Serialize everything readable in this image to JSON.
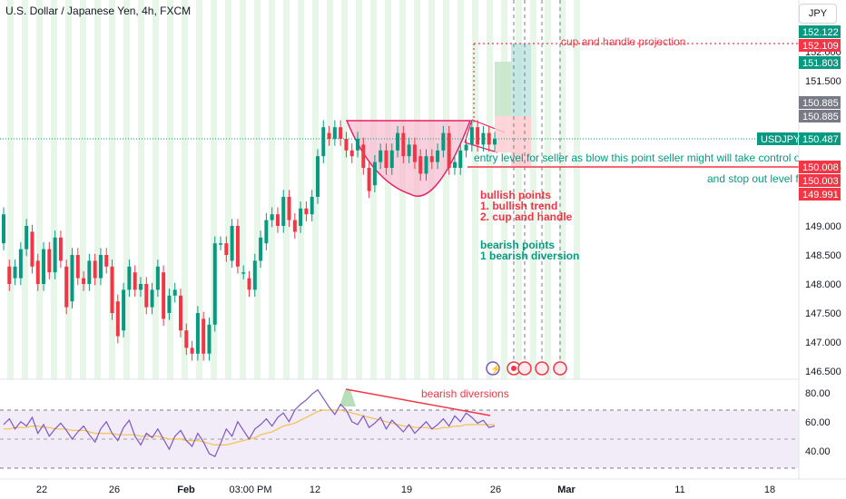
{
  "header": {
    "title": "U.S. Dollar / Japanese Yen, 4h, FXCM",
    "currency": "JPY"
  },
  "colors": {
    "up": "#089981",
    "down": "#f23645",
    "rsi_line": "#7e57c2",
    "rsi_ma": "#f2c14e",
    "band": "#ede7f6",
    "cup": "#f8bbd0",
    "session": "#e8f5e9"
  },
  "chart_data": [
    {
      "type": "candlestick",
      "symbol": "USDJPY",
      "yticks": [
        "152.000",
        "151.500",
        "150.000",
        "149.000",
        "148.500",
        "148.000",
        "147.500",
        "147.000",
        "146.500"
      ],
      "ylim": [
        146.4,
        152.4
      ],
      "xticks": [
        "22",
        "26",
        "Feb",
        "03:00 PM",
        "12",
        "19",
        "26",
        "Mar",
        "11",
        "18"
      ],
      "price_tags": [
        {
          "value": "152.122",
          "style": "teal"
        },
        {
          "value": "152.109",
          "style": "red"
        },
        {
          "value": "151.803",
          "style": "teal"
        },
        {
          "value": "150.885",
          "style": "gray"
        },
        {
          "value": "150.885",
          "style": "gray"
        },
        {
          "value": "150.487",
          "style": "teal",
          "symbol": "USDJPY"
        },
        {
          "value": "150.008",
          "style": "red"
        },
        {
          "value": "150.003",
          "style": "red"
        },
        {
          "value": "149.991",
          "style": "red"
        }
      ],
      "candles": [
        [
          148.7,
          149.2
        ],
        [
          148.3,
          148.0
        ],
        [
          148.1,
          148.3
        ],
        [
          148.1,
          148.6
        ],
        [
          148.6,
          149.0
        ],
        [
          148.9,
          148.3
        ],
        [
          148.4,
          148.0
        ],
        [
          148.0,
          148.6
        ],
        [
          148.6,
          148.2
        ],
        [
          148.2,
          148.8
        ],
        [
          148.8,
          148.4
        ],
        [
          148.3,
          147.6
        ],
        [
          147.7,
          148.5
        ],
        [
          148.5,
          148.1
        ],
        [
          148.1,
          148.0
        ],
        [
          148.0,
          148.4
        ],
        [
          148.4,
          148.1
        ],
        [
          148.1,
          148.5
        ],
        [
          148.5,
          148.3
        ],
        [
          148.3,
          147.5
        ],
        [
          147.7,
          147.1
        ],
        [
          147.2,
          147.9
        ],
        [
          147.9,
          148.3
        ],
        [
          148.2,
          147.9
        ],
        [
          147.9,
          148.0
        ],
        [
          148.0,
          147.6
        ],
        [
          147.6,
          147.9
        ],
        [
          147.9,
          148.3
        ],
        [
          148.2,
          147.4
        ],
        [
          147.5,
          147.8
        ],
        [
          147.8,
          147.9
        ],
        [
          147.8,
          147.2
        ],
        [
          147.2,
          146.9
        ],
        [
          146.9,
          146.8
        ],
        [
          146.8,
          147.5
        ],
        [
          147.4,
          146.8
        ],
        [
          146.8,
          147.3
        ],
        [
          147.3,
          148.7
        ],
        [
          148.7,
          148.7
        ],
        [
          148.7,
          148.5
        ],
        [
          148.4,
          149.0
        ],
        [
          149.0,
          148.3
        ],
        [
          148.2,
          148.2
        ],
        [
          148.1,
          147.9
        ],
        [
          147.9,
          148.4
        ],
        [
          148.4,
          148.8
        ],
        [
          148.7,
          149.1
        ],
        [
          149.1,
          149.2
        ],
        [
          149.2,
          149.0
        ],
        [
          149.0,
          149.5
        ],
        [
          149.5,
          149.1
        ],
        [
          149.1,
          148.9
        ],
        [
          149.0,
          149.3
        ],
        [
          149.3,
          149.2
        ],
        [
          149.2,
          149.5
        ],
        [
          149.5,
          150.2
        ],
        [
          150.2,
          150.7
        ],
        [
          150.6,
          150.5
        ],
        [
          150.5,
          150.7
        ],
        [
          150.7,
          150.5
        ],
        [
          150.5,
          150.3
        ],
        [
          150.3,
          150.2
        ],
        [
          150.3,
          150.5
        ],
        [
          150.4,
          150.0
        ],
        [
          150.0,
          149.6
        ],
        [
          149.7,
          150.1
        ],
        [
          150.1,
          150.3
        ],
        [
          150.3,
          150.0
        ],
        [
          150.0,
          150.3
        ],
        [
          150.3,
          150.6
        ],
        [
          150.6,
          150.2
        ],
        [
          150.2,
          150.4
        ],
        [
          150.4,
          150.1
        ],
        [
          150.2,
          149.9
        ],
        [
          149.9,
          150.2
        ],
        [
          150.2,
          150.1
        ],
        [
          150.1,
          150.3
        ],
        [
          150.3,
          150.6
        ],
        [
          150.6,
          150.0
        ],
        [
          150.0,
          150.1
        ],
        [
          150.0,
          150.3
        ],
        [
          150.3,
          150.4
        ],
        [
          150.4,
          150.7
        ],
        [
          150.7,
          150.4
        ],
        [
          150.4,
          150.6
        ],
        [
          150.6,
          150.4
        ],
        [
          150.4,
          150.5
        ]
      ],
      "annotations": {
        "projection": "cup and handle projection",
        "entry": "entry level for seller as blow this point seller might  will take control ove",
        "stop": "and stop out level fo",
        "bullish_title": "bullish points",
        "bullish_1": "1. bullish trend",
        "bullish_2": "2. cup and handle",
        "bearish_title": "bearish points",
        "bearish_1": "1 bearish diversion"
      }
    },
    {
      "type": "line",
      "name": "RSI",
      "yticks": [
        "80.00",
        "60.00",
        "40.00"
      ],
      "ylim": [
        28,
        88
      ],
      "band": [
        30,
        70
      ],
      "annotation": "bearish diversions",
      "values": [
        58,
        62,
        55,
        60,
        57,
        63,
        52,
        58,
        50,
        55,
        59,
        54,
        48,
        53,
        57,
        51,
        46,
        55,
        60,
        52,
        47,
        56,
        61,
        50,
        44,
        52,
        49,
        55,
        48,
        41,
        50,
        54,
        47,
        43,
        52,
        46,
        38,
        36,
        45,
        55,
        50,
        60,
        54,
        48,
        55,
        58,
        62,
        57,
        63,
        66,
        60,
        68,
        72,
        75,
        79,
        82,
        76,
        70,
        65,
        72,
        68,
        60,
        58,
        64,
        56,
        59,
        63,
        55,
        61,
        57,
        53,
        58,
        52,
        56,
        60,
        55,
        58,
        62,
        57,
        64,
        60,
        66,
        63,
        59,
        61,
        56,
        57
      ],
      "ma": [
        55,
        55,
        56,
        56,
        56,
        57,
        57,
        56,
        56,
        55,
        55,
        55,
        54,
        54,
        54,
        53,
        52,
        52,
        52,
        52,
        51,
        51,
        51,
        51,
        50,
        50,
        50,
        50,
        49,
        48,
        48,
        48,
        47,
        47,
        47,
        46,
        45,
        44,
        44,
        44,
        45,
        46,
        47,
        48,
        49,
        51,
        52,
        53,
        55,
        57,
        58,
        59,
        61,
        63,
        65,
        67,
        68,
        68,
        68,
        68,
        67,
        66,
        65,
        64,
        63,
        62,
        61,
        60,
        59,
        58,
        57,
        57,
        56,
        56,
        56,
        55,
        55,
        56,
        56,
        57,
        57,
        58,
        58,
        58,
        58,
        58,
        58
      ]
    }
  ]
}
